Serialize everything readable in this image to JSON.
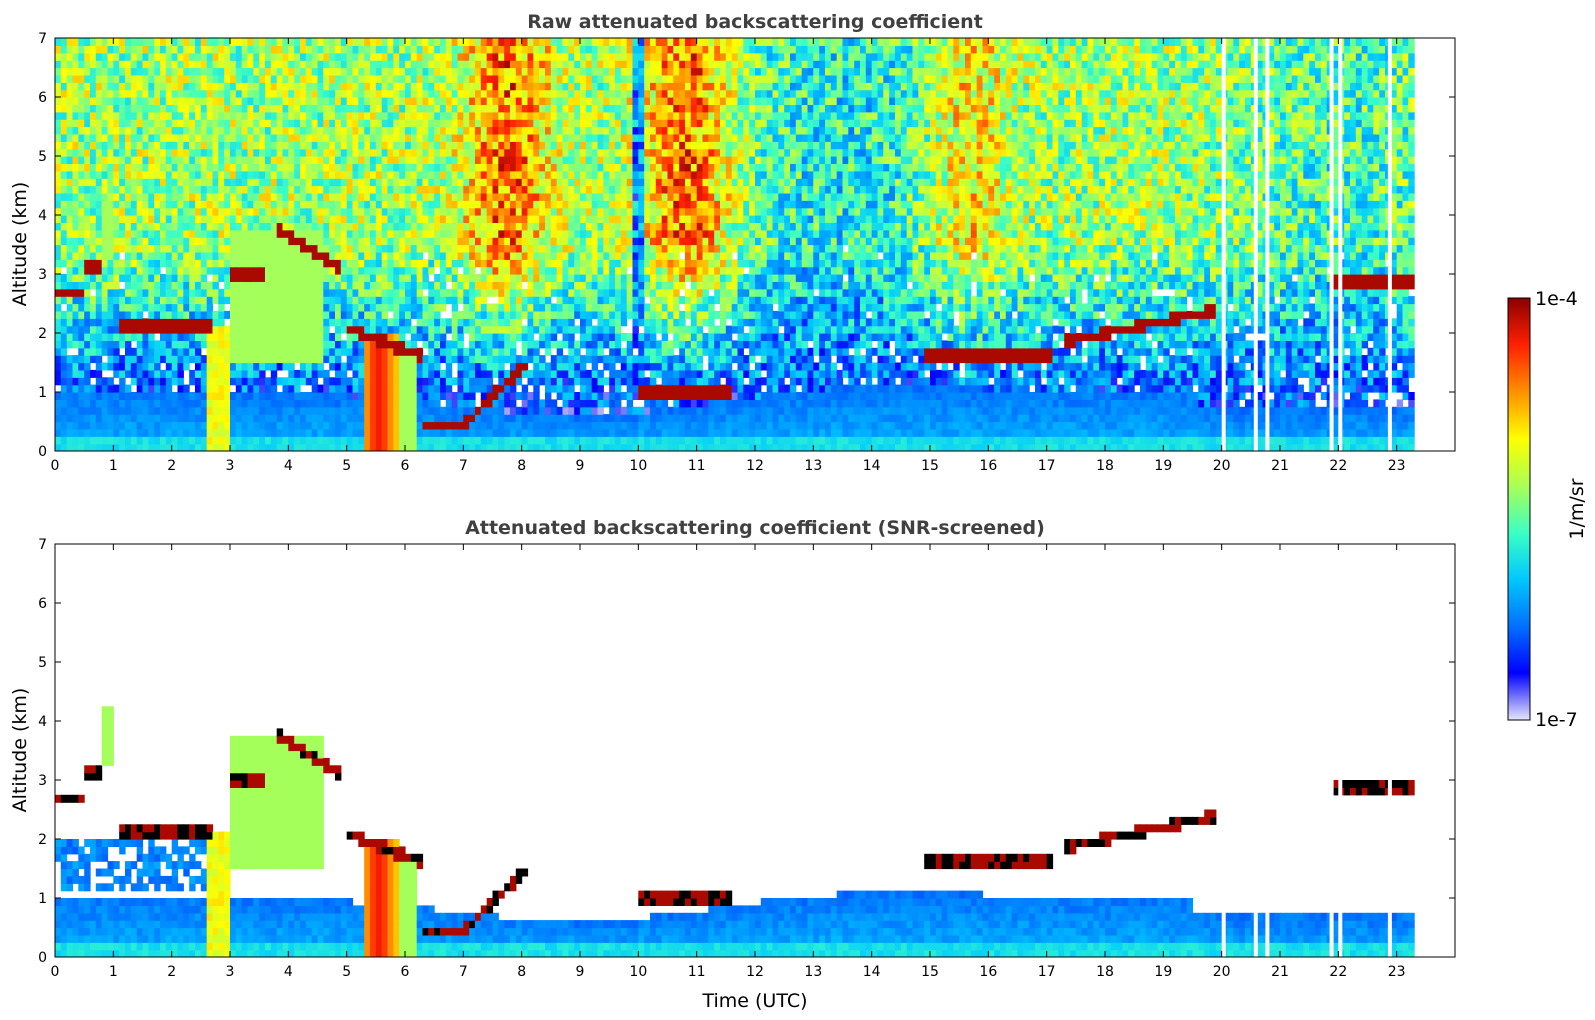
{
  "chart_data": [
    {
      "type": "heatmap",
      "title": "Raw attenuated backscattering coefficient",
      "xlabel": "",
      "ylabel": "Altitude (km)",
      "xlim": [
        0,
        24
      ],
      "ylim": [
        0,
        7
      ],
      "xticks": [
        "0",
        "1",
        "2",
        "3",
        "4",
        "5",
        "6",
        "7",
        "8",
        "9",
        "10",
        "11",
        "12",
        "13",
        "14",
        "15",
        "16",
        "17",
        "18",
        "19",
        "20",
        "21",
        "22",
        "23"
      ],
      "yticks": [
        "0",
        "1",
        "2",
        "3",
        "4",
        "5",
        "6",
        "7"
      ],
      "data_end_time": 23.3,
      "cloud_layers": [
        {
          "t_start": 0.0,
          "t_end": 0.5,
          "altitude_km": 2.7
        },
        {
          "t_start": 0.5,
          "t_end": 0.8,
          "altitude_km": 3.1
        },
        {
          "t_start": 1.1,
          "t_end": 2.7,
          "altitude_km": 2.1
        },
        {
          "t_start": 3.0,
          "t_end": 3.6,
          "altitude_km": 3.0
        },
        {
          "t_start": 3.8,
          "t_end": 4.9,
          "altitude_km": 3.5
        },
        {
          "t_start": 5.0,
          "t_end": 6.3,
          "altitude_km": 1.7
        },
        {
          "t_start": 6.3,
          "t_end": 7.0,
          "altitude_km": 0.45
        },
        {
          "t_start": 7.0,
          "t_end": 8.1,
          "altitude_km": 1.2
        },
        {
          "t_start": 10.0,
          "t_end": 11.6,
          "altitude_km": 1.0
        },
        {
          "t_start": 14.9,
          "t_end": 17.1,
          "altitude_km": 1.62
        },
        {
          "t_start": 17.3,
          "t_end": 19.9,
          "altitude_km": 2.1
        },
        {
          "t_start": 21.9,
          "t_end": 23.3,
          "altitude_km": 2.9
        }
      ]
    },
    {
      "type": "heatmap",
      "title": "Attenuated backscattering coefficient (SNR-screened)",
      "xlabel": "Time (UTC)",
      "ylabel": "Altitude (km)",
      "xlim": [
        0,
        24
      ],
      "ylim": [
        0,
        7
      ],
      "xticks": [
        "0",
        "1",
        "2",
        "3",
        "4",
        "5",
        "6",
        "7",
        "8",
        "9",
        "10",
        "11",
        "12",
        "13",
        "14",
        "15",
        "16",
        "17",
        "18",
        "19",
        "20",
        "21",
        "22",
        "23"
      ],
      "yticks": [
        "0",
        "1",
        "2",
        "3",
        "4",
        "5",
        "6",
        "7"
      ],
      "data_end_time": 23.3
    }
  ],
  "colorbar": {
    "label": "1/m/sr",
    "max_label": "1e-4",
    "min_label": "1e-7",
    "colormap": [
      "#e6e6fa",
      "#0000ff",
      "#0070ff",
      "#00c8ff",
      "#3cffc3",
      "#aaff55",
      "#ffff00",
      "#ff9000",
      "#ff2000",
      "#8b0000"
    ]
  }
}
